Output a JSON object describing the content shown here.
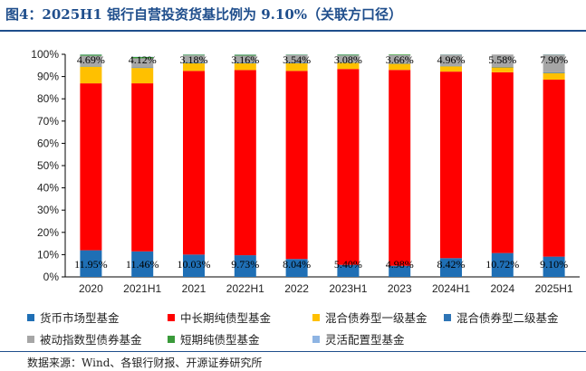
{
  "title": "图4：2025H1 银行自营投资货基比例为 9.10%（关联方口径）",
  "source": "数据来源：Wind、各银行财报、开源证券研究所",
  "chart_data": {
    "type": "bar",
    "stacked": true,
    "categories": [
      "2020",
      "2021H1",
      "2021",
      "2022H1",
      "2022",
      "2023H1",
      "2023",
      "2024H1",
      "2024",
      "2025H1"
    ],
    "ylim": [
      0,
      100
    ],
    "yticks": [
      "0%",
      "10%",
      "20%",
      "30%",
      "40%",
      "50%",
      "60%",
      "70%",
      "80%",
      "90%",
      "100%"
    ],
    "series": [
      {
        "name": "货币市场型基金",
        "color": "#1f6fb5",
        "values": [
          11.95,
          11.46,
          10.03,
          9.73,
          8.04,
          5.4,
          4.98,
          8.42,
          10.72,
          9.1
        ]
      },
      {
        "name": "中长期纯债型基金",
        "color": "#ff0000",
        "values": [
          75.0,
          75.5,
          82.5,
          83.2,
          84.5,
          88.0,
          88.0,
          83.8,
          81.2,
          79.5
        ]
      },
      {
        "name": "混合债券型一级基金",
        "color": "#ffc000",
        "values": [
          7.5,
          6.9,
          3.5,
          3.0,
          3.4,
          2.8,
          2.8,
          2.4,
          2.2,
          3.0
        ]
      },
      {
        "name": "混合债券型二级基金",
        "color": "#2e75b6",
        "values": [
          0.2,
          0.2,
          0.3,
          0.3,
          0.2,
          0.2,
          0.2,
          0.2,
          0.2,
          0.3
        ]
      },
      {
        "name": "被动指数型债券基金",
        "color": "#a6a6a6",
        "values": [
          4.69,
          4.12,
          3.18,
          3.16,
          3.54,
          3.08,
          3.66,
          4.96,
          5.58,
          7.9
        ]
      },
      {
        "name": "短期纯债型基金",
        "color": "#3a9a3a",
        "values": [
          0.5,
          0.6,
          0.3,
          0.4,
          0.2,
          0.4,
          0.3,
          0.1,
          0.0,
          0.1
        ]
      },
      {
        "name": "灵活配置型基金",
        "color": "#8eb4e3",
        "values": [
          0.1,
          0.1,
          0.1,
          0.1,
          0.1,
          0.1,
          0.0,
          0.1,
          0.0,
          0.1
        ]
      }
    ],
    "data_labels": {
      "bottom_series": "货币市场型基金",
      "bottom": [
        "11.95%",
        "11.46%",
        "10.03%",
        "9.73%",
        "8.04%",
        "5.40%",
        "4.98%",
        "8.42%",
        "10.72%",
        "9.10%"
      ],
      "top_series": "被动指数型债券基金",
      "top": [
        "4.69%",
        "4.12%",
        "3.18%",
        "3.16%",
        "3.54%",
        "3.08%",
        "3.66%",
        "4.96%",
        "5.58%",
        "7.90%"
      ]
    }
  }
}
